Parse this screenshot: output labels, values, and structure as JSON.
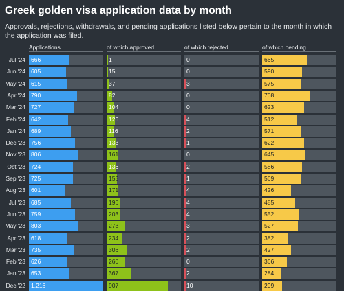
{
  "header": {
    "title": "Greek golden visa application data by month",
    "subtitle": "Approvals, rejections, withdrawals, and pending applications listed below pertain to the month in which the application was filed."
  },
  "colors": {
    "background": "#2b3138",
    "track": "#4e565e",
    "applications": "#3d9ef0",
    "approved": "#8ec21a",
    "rejected": "#d7515a",
    "pending": "#f7c948"
  },
  "chart_data": {
    "type": "table",
    "categories": [
      "Jul '24",
      "Jun '24",
      "May '24",
      "Apr '24",
      "Mar '24",
      "Feb '24",
      "Jan '24",
      "Dec '23",
      "Nov '23",
      "Oct '23",
      "Sep '23",
      "Aug '23",
      "Jul '23",
      "Jun '23",
      "May '23",
      "Apr '23",
      "Mar '23",
      "Feb '23",
      "Jan '23",
      "Dec '22"
    ],
    "series": [
      {
        "name": "Applications",
        "max": 1216,
        "labels": [
          "666",
          "605",
          "615",
          "790",
          "727",
          "642",
          "689",
          "756",
          "806",
          "724",
          "725",
          "601",
          "685",
          "759",
          "803",
          "618",
          "735",
          "626",
          "653",
          "1,216"
        ],
        "values": [
          666,
          605,
          615,
          790,
          727,
          642,
          689,
          756,
          806,
          724,
          725,
          601,
          685,
          759,
          803,
          618,
          735,
          626,
          653,
          1216
        ]
      },
      {
        "name": "of which approved",
        "max": 1100,
        "labels": [
          "1",
          "15",
          "37",
          "82",
          "104",
          "126",
          "116",
          "133",
          "161",
          "136",
          "155",
          "171",
          "196",
          "203",
          "273",
          "234",
          "306",
          "260",
          "367",
          "907"
        ],
        "values": [
          1,
          15,
          37,
          82,
          104,
          126,
          116,
          133,
          161,
          136,
          155,
          171,
          196,
          203,
          273,
          234,
          306,
          260,
          367,
          907
        ]
      },
      {
        "name": "of which rejected",
        "max": 1100,
        "labels": [
          "0",
          "0",
          "3",
          "0",
          "0",
          "4",
          "2",
          "1",
          "0",
          "2",
          "1",
          "4",
          "4",
          "4",
          "3",
          "2",
          "2",
          "0",
          "2",
          "10"
        ],
        "values": [
          0,
          0,
          3,
          0,
          0,
          4,
          2,
          1,
          0,
          2,
          1,
          4,
          4,
          4,
          3,
          2,
          2,
          0,
          2,
          10
        ]
      },
      {
        "name": "of which pending",
        "max": 1100,
        "labels": [
          "665",
          "590",
          "575",
          "708",
          "623",
          "512",
          "571",
          "622",
          "645",
          "586",
          "569",
          "426",
          "485",
          "552",
          "527",
          "382",
          "427",
          "366",
          "284",
          "299"
        ],
        "values": [
          665,
          590,
          575,
          708,
          623,
          512,
          571,
          622,
          645,
          586,
          569,
          426,
          485,
          552,
          527,
          382,
          427,
          366,
          284,
          299
        ]
      }
    ]
  }
}
